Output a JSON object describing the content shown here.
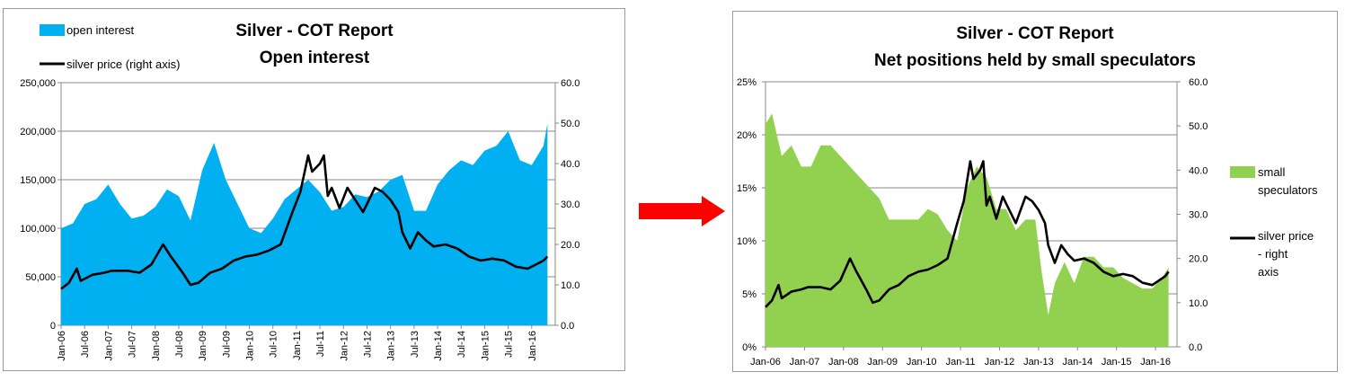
{
  "chart_data": [
    {
      "type": "area",
      "title": "Silver - COT Report",
      "subtitle": "Open interest",
      "y_left_ticks": [
        "0",
        "50,000",
        "100,000",
        "150,000",
        "200,000",
        "250,000"
      ],
      "y_right_ticks": [
        "0.0",
        "10.0",
        "20.0",
        "30.0",
        "40.0",
        "50.0",
        "60.0"
      ],
      "ylim_left": [
        0,
        250000
      ],
      "ylim_right": [
        0,
        60
      ],
      "x_ticks": [
        "Jan-06",
        "Jul-06",
        "Jan-07",
        "Jul-07",
        "Jan-08",
        "Jul-08",
        "Jan-09",
        "Jul-09",
        "Jan-10",
        "Jul-10",
        "Jan-11",
        "Jul-11",
        "Jan-12",
        "Jul-12",
        "Jan-13",
        "Jul-13",
        "Jan-14",
        "Jul-14",
        "Jan-15",
        "Jul-15",
        "Jan-16"
      ],
      "grid": true,
      "legend_position": "top-left",
      "series": [
        {
          "name": "open interest",
          "axis": "left",
          "kind": "area",
          "color": "#00b0f0",
          "x": [
            "2006-01",
            "2006-04",
            "2006-07",
            "2006-10",
            "2007-01",
            "2007-04",
            "2007-07",
            "2007-10",
            "2008-01",
            "2008-04",
            "2008-07",
            "2008-10",
            "2009-01",
            "2009-04",
            "2009-07",
            "2009-10",
            "2010-01",
            "2010-04",
            "2010-07",
            "2010-10",
            "2011-01",
            "2011-04",
            "2011-07",
            "2011-10",
            "2012-01",
            "2012-04",
            "2012-07",
            "2012-10",
            "2013-01",
            "2013-04",
            "2013-07",
            "2013-10",
            "2014-01",
            "2014-04",
            "2014-07",
            "2014-10",
            "2015-01",
            "2015-04",
            "2015-07",
            "2015-10",
            "2016-01",
            "2016-04",
            "2016-05"
          ],
          "values": [
            100000,
            105000,
            125000,
            130000,
            145000,
            125000,
            110000,
            113000,
            122000,
            140000,
            133000,
            108000,
            160000,
            188000,
            150000,
            125000,
            100000,
            95000,
            110000,
            130000,
            140000,
            150000,
            137000,
            118000,
            122000,
            135000,
            132000,
            138000,
            150000,
            155000,
            118000,
            118000,
            145000,
            160000,
            170000,
            165000,
            180000,
            185000,
            200000,
            170000,
            165000,
            185000,
            208000
          ]
        },
        {
          "name": "silver price (right axis)",
          "axis": "right",
          "kind": "line",
          "color": "#000000",
          "x": [
            "2006-01",
            "2006-03",
            "2006-05",
            "2006-06",
            "2006-09",
            "2006-12",
            "2007-02",
            "2007-06",
            "2007-09",
            "2007-12",
            "2008-03",
            "2008-05",
            "2008-08",
            "2008-10",
            "2008-12",
            "2009-03",
            "2009-06",
            "2009-09",
            "2009-12",
            "2010-03",
            "2010-06",
            "2010-09",
            "2010-12",
            "2011-02",
            "2011-04",
            "2011-05",
            "2011-07",
            "2011-08",
            "2011-09",
            "2011-10",
            "2011-12",
            "2012-02",
            "2012-04",
            "2012-06",
            "2012-09",
            "2012-11",
            "2013-01",
            "2013-03",
            "2013-04",
            "2013-06",
            "2013-08",
            "2013-10",
            "2013-12",
            "2014-03",
            "2014-06",
            "2014-09",
            "2014-12",
            "2015-03",
            "2015-06",
            "2015-09",
            "2015-12",
            "2016-02",
            "2016-04",
            "2016-05"
          ],
          "values": [
            9,
            10.5,
            14,
            11,
            12.5,
            13,
            13.5,
            13.5,
            13,
            15,
            20,
            17,
            13,
            10,
            10.5,
            13,
            14,
            16,
            17,
            17.5,
            18.5,
            20,
            28,
            33,
            42,
            38,
            40,
            42,
            32,
            34,
            29,
            34,
            31,
            28,
            34,
            33,
            31,
            28,
            23,
            19,
            23,
            21,
            19.5,
            20,
            19,
            17,
            16,
            16.5,
            16,
            14.5,
            14,
            15,
            16,
            17
          ]
        }
      ]
    },
    {
      "type": "area",
      "title": "Silver - COT Report",
      "subtitle": "Net positions held by small speculators",
      "y_left_ticks": [
        "0%",
        "5%",
        "10%",
        "15%",
        "20%",
        "25%"
      ],
      "y_right_ticks": [
        "0.0",
        "10.0",
        "20.0",
        "30.0",
        "40.0",
        "50.0",
        "60.0"
      ],
      "ylim_left": [
        0,
        25
      ],
      "ylim_right": [
        0,
        60
      ],
      "x_ticks": [
        "Jan-06",
        "Jan-07",
        "Jan-08",
        "Jan-09",
        "Jan-10",
        "Jan-11",
        "Jan-12",
        "Jan-13",
        "Jan-14",
        "Jan-15",
        "Jan-16"
      ],
      "grid": true,
      "legend_position": "right",
      "series": [
        {
          "name": "small speculators",
          "axis": "left",
          "kind": "area",
          "color": "#92d050",
          "x": [
            "2006-01",
            "2006-03",
            "2006-06",
            "2006-09",
            "2006-12",
            "2007-03",
            "2007-06",
            "2007-09",
            "2007-12",
            "2008-03",
            "2008-06",
            "2008-09",
            "2008-12",
            "2009-03",
            "2009-06",
            "2009-09",
            "2009-12",
            "2010-03",
            "2010-06",
            "2010-09",
            "2010-12",
            "2011-03",
            "2011-06",
            "2011-09",
            "2011-12",
            "2012-03",
            "2012-06",
            "2012-09",
            "2012-12",
            "2013-02",
            "2013-04",
            "2013-06",
            "2013-09",
            "2013-12",
            "2014-03",
            "2014-06",
            "2014-09",
            "2014-12",
            "2015-03",
            "2015-06",
            "2015-09",
            "2015-12",
            "2016-03",
            "2016-05"
          ],
          "values": [
            21,
            22,
            18,
            19,
            17,
            17,
            19,
            19,
            18,
            17,
            16,
            15,
            14,
            12,
            12,
            12,
            12,
            13,
            12.5,
            11,
            10,
            15,
            17,
            16,
            13,
            13,
            11,
            12,
            12,
            7,
            3,
            6,
            8,
            6,
            8.5,
            8.5,
            7.5,
            7.5,
            6.5,
            6,
            5.5,
            5.5,
            6.5,
            7.5
          ]
        },
        {
          "name": "silver price - right axis",
          "axis": "right",
          "kind": "line",
          "color": "#000000",
          "x": [
            "2006-01",
            "2006-03",
            "2006-05",
            "2006-06",
            "2006-09",
            "2006-12",
            "2007-02",
            "2007-06",
            "2007-09",
            "2007-12",
            "2008-03",
            "2008-05",
            "2008-08",
            "2008-10",
            "2008-12",
            "2009-03",
            "2009-06",
            "2009-09",
            "2009-12",
            "2010-03",
            "2010-06",
            "2010-09",
            "2010-12",
            "2011-02",
            "2011-04",
            "2011-05",
            "2011-07",
            "2011-08",
            "2011-09",
            "2011-10",
            "2011-12",
            "2012-02",
            "2012-04",
            "2012-06",
            "2012-09",
            "2012-11",
            "2013-01",
            "2013-03",
            "2013-04",
            "2013-06",
            "2013-08",
            "2013-10",
            "2013-12",
            "2014-03",
            "2014-06",
            "2014-09",
            "2014-12",
            "2015-03",
            "2015-06",
            "2015-09",
            "2015-12",
            "2016-02",
            "2016-04",
            "2016-05"
          ],
          "values": [
            9,
            10.5,
            14,
            11,
            12.5,
            13,
            13.5,
            13.5,
            13,
            15,
            20,
            17,
            13,
            10,
            10.5,
            13,
            14,
            16,
            17,
            17.5,
            18.5,
            20,
            28,
            33,
            42,
            38,
            40,
            42,
            32,
            34,
            29,
            34,
            31,
            28,
            34,
            33,
            31,
            28,
            23,
            19,
            23,
            21,
            19.5,
            20,
            19,
            17,
            16,
            16.5,
            16,
            14.5,
            14,
            15,
            16,
            17
          ]
        }
      ]
    }
  ],
  "arrow_color": "#ff0000",
  "arrow_icon": "arrow-right-icon"
}
